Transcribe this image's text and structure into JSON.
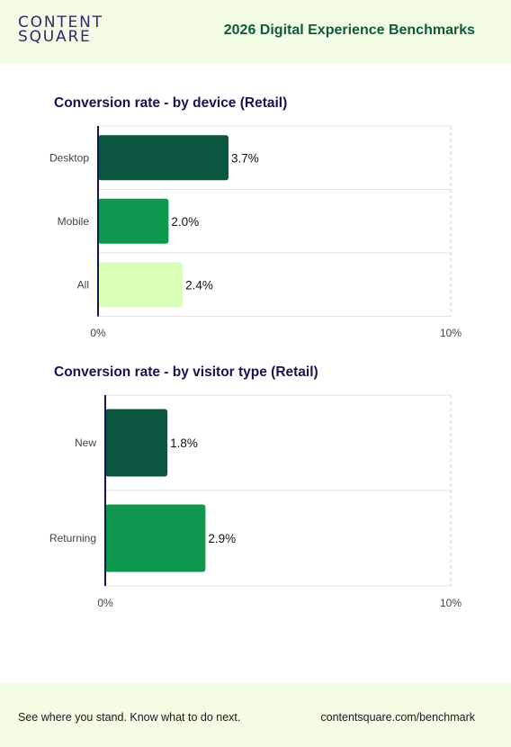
{
  "header": {
    "logo_line1": "CONTENT",
    "logo_line2": "SQUARE",
    "title": "2026 Digital Experience Benchmarks"
  },
  "chart_data": [
    {
      "type": "bar",
      "orientation": "horizontal",
      "title": "Conversion rate - by device (Retail)",
      "categories": [
        "Desktop",
        "Mobile",
        "All"
      ],
      "values": [
        3.7,
        2.0,
        2.4
      ],
      "value_labels": [
        "3.7%",
        "2.0%",
        "2.4%"
      ],
      "colors": [
        "#0b5640",
        "#0f9750",
        "#d9ffb8"
      ],
      "xlim": [
        0,
        10
      ],
      "tick_labels": [
        "0%",
        "10%"
      ],
      "grid": true
    },
    {
      "type": "bar",
      "orientation": "horizontal",
      "title": "Conversion rate - by visitor type (Retail)",
      "categories": [
        "New",
        "Returning"
      ],
      "values": [
        1.8,
        2.9
      ],
      "value_labels": [
        "1.8%",
        "2.9%"
      ],
      "colors": [
        "#0b5640",
        "#0f9750"
      ],
      "xlim": [
        0,
        10
      ],
      "tick_labels": [
        "0%",
        "10%"
      ],
      "grid": true
    }
  ],
  "footer": {
    "tagline": "See where you stand. Know what to do next.",
    "link": "contentsquare.com/benchmark"
  }
}
